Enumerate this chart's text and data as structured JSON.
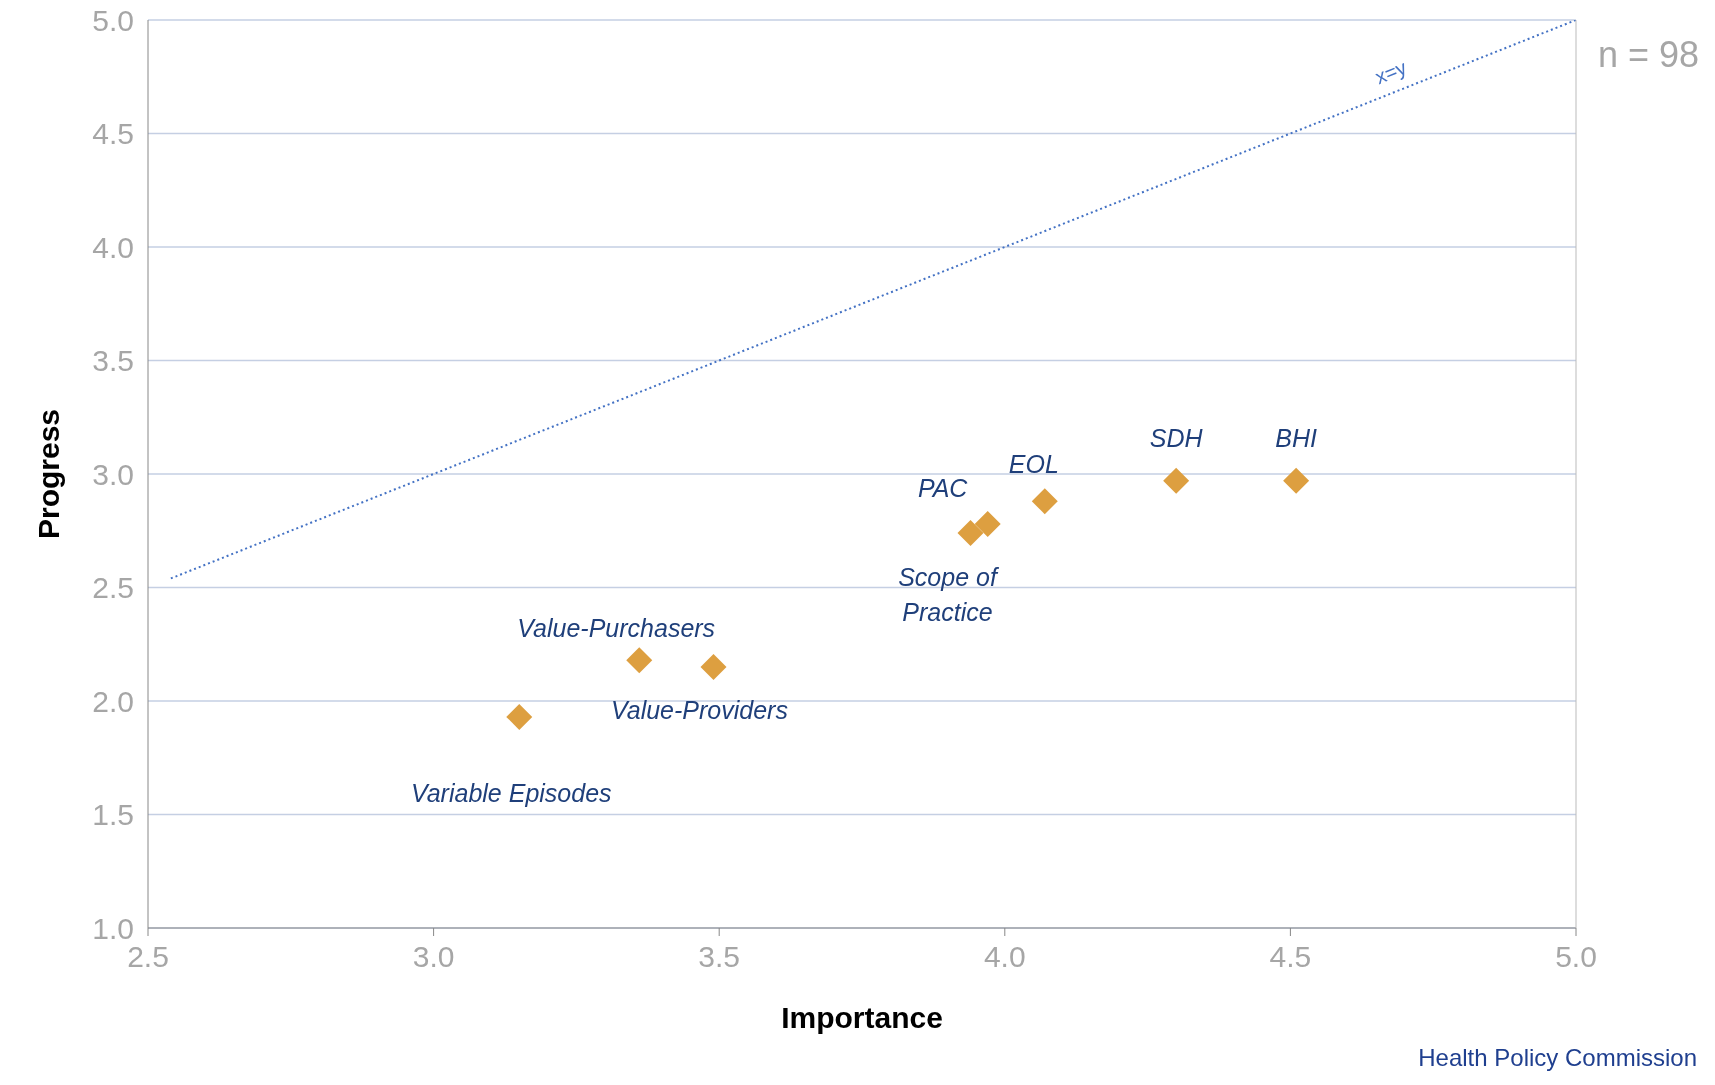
{
  "chart_data": {
    "type": "scatter",
    "xlabel": "Importance",
    "ylabel": "Progress",
    "xlim": [
      2.5,
      5.0
    ],
    "ylim": [
      1.0,
      5.0
    ],
    "xticks": [
      {
        "value": 2.5,
        "label": "2.5"
      },
      {
        "value": 3,
        "label": "3.0"
      },
      {
        "value": 3.5,
        "label": "3.5"
      },
      {
        "value": 4,
        "label": "4.0"
      },
      {
        "value": 4.5,
        "label": "4.5"
      },
      {
        "value": 5,
        "label": "5.0"
      }
    ],
    "yticks": [
      {
        "value": 1,
        "label": "1.0"
      },
      {
        "value": 1.5,
        "label": "1.5"
      },
      {
        "value": 2,
        "label": "2.0"
      },
      {
        "value": 2.5,
        "label": "2.5"
      },
      {
        "value": 3,
        "label": "3.0"
      },
      {
        "value": 3.5,
        "label": "3.5"
      },
      {
        "value": 4,
        "label": "4.0"
      },
      {
        "value": 4.5,
        "label": "4.5"
      },
      {
        "value": 5,
        "label": "5.0"
      }
    ],
    "grid": "y",
    "legend": false,
    "series": [
      {
        "color": "#dd9f40",
        "marker": "diamond",
        "x": [
          3.15,
          3.36,
          3.49,
          3.94,
          3.97,
          4.07,
          4.3,
          4.51
        ],
        "values": [
          1.93,
          2.18,
          2.15,
          2.74,
          2.78,
          2.88,
          2.97,
          2.97
        ]
      },
      {
        "type": "line",
        "name": "x=y",
        "color": "#4472c4",
        "line_style": "dotted",
        "marker": "none",
        "x": [
          2.54,
          5.0
        ],
        "values": [
          2.54,
          5.0
        ]
      }
    ],
    "annotations": [
      {
        "text": "Variable Episodes",
        "x": 3.15,
        "y": 1.93
      },
      {
        "text": "Value-Purchasers",
        "x": 3.36,
        "y": 2.18
      },
      {
        "text": "Value-Providers",
        "x": 3.49,
        "y": 2.15
      },
      {
        "text": "Scope of Practice",
        "x": 3.94,
        "y": 2.74
      },
      {
        "text": "PAC",
        "x": 3.97,
        "y": 2.78
      },
      {
        "text": "EOL",
        "x": 4.07,
        "y": 2.88
      },
      {
        "text": "SDH",
        "x": 4.3,
        "y": 2.97
      },
      {
        "text": "BHI",
        "x": 4.51,
        "y": 2.97
      },
      "n = 98",
      "Health Policy Commission"
    ]
  }
}
